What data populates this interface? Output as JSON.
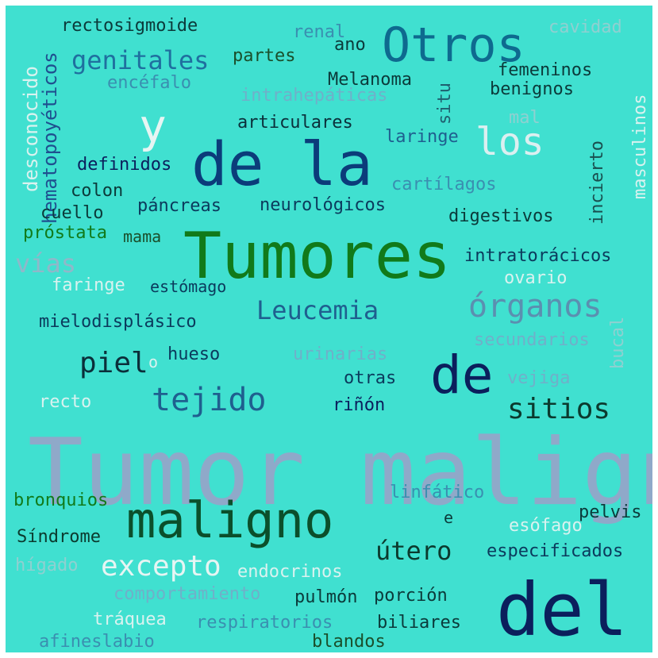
{
  "cloud": {
    "background": "#40e0d0",
    "words": [
      {
        "text": "Tumor maligno",
        "color": "#8fa9c9"
      },
      {
        "text": "Tumores",
        "color": "#117a1a"
      },
      {
        "text": "del",
        "color": "#0b1f5c"
      },
      {
        "text": "de la",
        "color": "#0b3c7a"
      },
      {
        "text": "maligno",
        "color": "#0b4f2b"
      },
      {
        "text": "Otros",
        "color": "#0e6a8f"
      },
      {
        "text": "de",
        "color": "#0b1f5c"
      },
      {
        "text": "y",
        "color": "#e6f5f3"
      },
      {
        "text": "los",
        "color": "#dbeff0"
      },
      {
        "text": "órganos",
        "color": "#5b8fb0"
      },
      {
        "text": "tejido",
        "color": "#1f5f8f"
      },
      {
        "text": "excepto",
        "color": "#e6f5f3"
      },
      {
        "text": "sitios",
        "color": "#0b3a2e"
      },
      {
        "text": "Leucemia",
        "color": "#1f5f8f"
      },
      {
        "text": "útero",
        "color": "#0b3a2e"
      },
      {
        "text": "genitales",
        "color": "#1f6f9f"
      },
      {
        "text": "piel",
        "color": "#0b2f3a"
      },
      {
        "text": "vías",
        "color": "#8fb8c9"
      },
      {
        "text": "rectosigmoide",
        "color": "#0b3a3a"
      },
      {
        "text": "desconocido",
        "color": "#d9f2ef"
      },
      {
        "text": "hematopoyéticos",
        "color": "#1f4f8f"
      },
      {
        "text": "encéfalo",
        "color": "#3a8fb0"
      },
      {
        "text": "partes",
        "color": "#1a4f2b"
      },
      {
        "text": "renal",
        "color": "#3a8fb0"
      },
      {
        "text": "ano",
        "color": "#0b3a3a"
      },
      {
        "text": "cavidad",
        "color": "#8fd0d0"
      },
      {
        "text": "Melanoma",
        "color": "#0b3a3a"
      },
      {
        "text": "femeninos",
        "color": "#0b3a3a"
      },
      {
        "text": "benignos",
        "color": "#0b3a3a"
      },
      {
        "text": "intrahepáticas",
        "color": "#6fb0c9"
      },
      {
        "text": "situ",
        "color": "#1f5f6f"
      },
      {
        "text": "mal",
        "color": "#8fd0d0"
      },
      {
        "text": "articulares",
        "color": "#0b2f3a"
      },
      {
        "text": "laringe",
        "color": "#1f5f8f"
      },
      {
        "text": "incierto",
        "color": "#1a4f4f"
      },
      {
        "text": "masculinos",
        "color": "#d9f2ef"
      },
      {
        "text": "definidos",
        "color": "#0b1f5c"
      },
      {
        "text": "cartílagos",
        "color": "#3a8fb0"
      },
      {
        "text": "colon",
        "color": "#0b3a3a"
      },
      {
        "text": "neurológicos",
        "color": "#0b3a5c"
      },
      {
        "text": "páncreas",
        "color": "#0b3a5c"
      },
      {
        "text": "cuello",
        "color": "#0b3a3a"
      },
      {
        "text": "digestivos",
        "color": "#0b3a3a"
      },
      {
        "text": "próstata",
        "color": "#117a1a"
      },
      {
        "text": "mama",
        "color": "#1a4f2b"
      },
      {
        "text": "intratorácicos",
        "color": "#0b3a5c"
      },
      {
        "text": "faringe",
        "color": "#d9f2ef"
      },
      {
        "text": "estómago",
        "color": "#0b3a5c"
      },
      {
        "text": "ovario",
        "color": "#d9f2ef"
      },
      {
        "text": "mielodisplásico",
        "color": "#0b3a5c"
      },
      {
        "text": "bucal",
        "color": "#8fd0d0"
      },
      {
        "text": "hueso",
        "color": "#0b3a5c"
      },
      {
        "text": "secundarios",
        "color": "#6fb0c9"
      },
      {
        "text": "o",
        "color": "#d9f2ef"
      },
      {
        "text": "urinarias",
        "color": "#6fb0c9"
      },
      {
        "text": "vejiga",
        "color": "#6fb0c9"
      },
      {
        "text": "otras",
        "color": "#0b3a5c"
      },
      {
        "text": "recto",
        "color": "#d9f2ef"
      },
      {
        "text": "riñón",
        "color": "#0b1f5c"
      },
      {
        "text": "linfático",
        "color": "#3a8fb0"
      },
      {
        "text": "pelvis",
        "color": "#0b3a3a"
      },
      {
        "text": "bronquios",
        "color": "#117a1a"
      },
      {
        "text": "e",
        "color": "#0b3a3a"
      },
      {
        "text": "Síndrome",
        "color": "#0b3a2e"
      },
      {
        "text": "esófago",
        "color": "#d9f2ef"
      },
      {
        "text": "especificados",
        "color": "#0b3a5c"
      },
      {
        "text": "hígado",
        "color": "#8fd0d0"
      },
      {
        "text": "endocrinos",
        "color": "#d9f2ef"
      },
      {
        "text": "comportamiento",
        "color": "#6fb0c9"
      },
      {
        "text": "pulmón",
        "color": "#0b3a3a"
      },
      {
        "text": "porción",
        "color": "#0b3a3a"
      },
      {
        "text": "tráquea",
        "color": "#d9f2ef"
      },
      {
        "text": "respiratorios",
        "color": "#3a8fb0"
      },
      {
        "text": "biliares",
        "color": "#0b3a3a"
      },
      {
        "text": "afineslabio",
        "color": "#3a8fb0"
      },
      {
        "text": "blandos",
        "color": "#1a4f2b"
      }
    ]
  }
}
